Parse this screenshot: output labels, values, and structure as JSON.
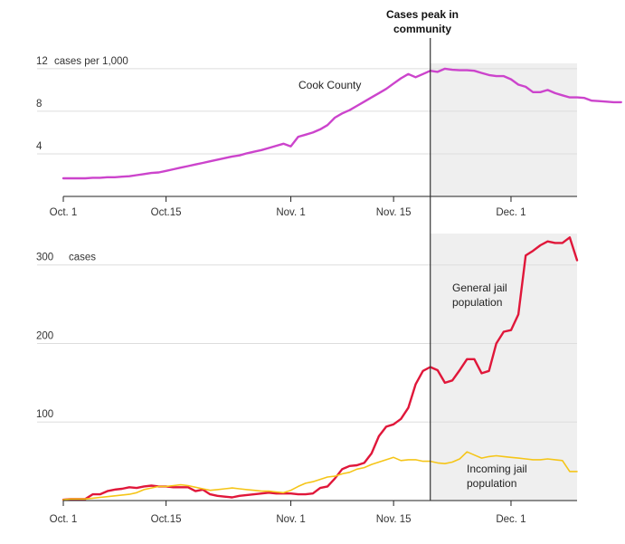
{
  "annotation": {
    "line1": "Cases peak in",
    "line2": "community"
  },
  "colors": {
    "cook_county": "#cc44cc",
    "general_jail": "#e0173a",
    "incoming_jail": "#f5c518",
    "shade": "#efefef",
    "grid": "#dddddd",
    "axis": "#222222",
    "marker": "#333333"
  },
  "chart_data": [
    {
      "type": "line",
      "title": "",
      "xlabel": "",
      "ylabel": "",
      "ylim": [
        0,
        12.5
      ],
      "yticks": [
        4,
        8,
        12
      ],
      "ytick_labels": [
        "4",
        "8",
        "12"
      ],
      "yunit": "cases per 1,000",
      "xticks": [
        "Oct. 1",
        "Oct.15",
        "Nov. 1",
        "Nov. 15",
        "Dec. 1"
      ],
      "x_start": "Oct. 1",
      "x_end": "Dec. 10",
      "shaded_from": "Nov. 20",
      "grid": true,
      "series": [
        {
          "name": "Cook County",
          "color": "#cc44cc",
          "values": [
            1.7,
            1.7,
            1.7,
            1.7,
            1.75,
            1.75,
            1.8,
            1.8,
            1.85,
            1.9,
            2.0,
            2.1,
            2.2,
            2.25,
            2.4,
            2.55,
            2.7,
            2.85,
            3.0,
            3.15,
            3.3,
            3.45,
            3.6,
            3.75,
            3.85,
            4.05,
            4.2,
            4.35,
            4.55,
            4.75,
            4.95,
            4.7,
            5.6,
            5.8,
            6.0,
            6.3,
            6.7,
            7.4,
            7.8,
            8.1,
            8.5,
            8.9,
            9.3,
            9.7,
            10.1,
            10.6,
            11.1,
            11.5,
            11.2,
            11.5,
            11.8,
            11.7,
            12.0,
            11.9,
            11.85,
            11.85,
            11.8,
            11.6,
            11.4,
            11.3,
            11.3,
            11.0,
            10.5,
            10.3,
            9.8,
            9.8,
            10.0,
            9.7,
            9.5,
            9.3,
            9.3,
            9.25,
            9.0,
            8.95,
            8.9,
            8.85,
            8.85
          ]
        }
      ]
    },
    {
      "type": "line",
      "title": "",
      "xlabel": "",
      "ylabel": "",
      "ylim": [
        0,
        340
      ],
      "yticks": [
        100,
        200,
        300
      ],
      "ytick_labels": [
        "100",
        "200",
        "300"
      ],
      "yunit": "cases",
      "xticks": [
        "Oct. 1",
        "Oct.15",
        "Nov. 1",
        "Nov. 15",
        "Dec. 1"
      ],
      "x_start": "Oct. 1",
      "x_end": "Dec. 10",
      "shaded_from": "Nov. 20",
      "grid": true,
      "series": [
        {
          "name": "General jail population",
          "label_lines": [
            "General jail",
            "population"
          ],
          "color": "#e0173a",
          "values": [
            1,
            2,
            2,
            2,
            8,
            8,
            12,
            14,
            15,
            17,
            16,
            18,
            19,
            18,
            18,
            17,
            17,
            17,
            12,
            14,
            8,
            6,
            5,
            4,
            6,
            7,
            8,
            9,
            10,
            9,
            9,
            9,
            8,
            8,
            9,
            16,
            18,
            28,
            40,
            44,
            45,
            48,
            60,
            82,
            94,
            97,
            104,
            118,
            148,
            165,
            170,
            166,
            150,
            153,
            166,
            180,
            180,
            162,
            165,
            200,
            215,
            217,
            237,
            312,
            318,
            325,
            330,
            328,
            328,
            335,
            306
          ]
        },
        {
          "name": "Incoming jail population",
          "label_lines": [
            "Incoming jail",
            "population"
          ],
          "color": "#f5c518",
          "values": [
            1,
            2,
            2,
            2,
            3,
            4,
            5,
            6,
            7,
            8,
            10,
            14,
            16,
            18,
            18,
            19,
            20,
            19,
            17,
            15,
            13,
            14,
            15,
            16,
            15,
            14,
            13,
            12,
            12,
            11,
            10,
            13,
            18,
            22,
            24,
            27,
            30,
            31,
            34,
            36,
            40,
            42,
            46,
            49,
            52,
            55,
            51,
            52,
            52,
            50,
            50,
            48,
            47,
            49,
            53,
            62,
            58,
            54,
            56,
            57,
            56,
            55,
            54,
            53,
            52,
            52,
            53,
            52,
            51,
            37,
            37
          ]
        }
      ]
    }
  ]
}
